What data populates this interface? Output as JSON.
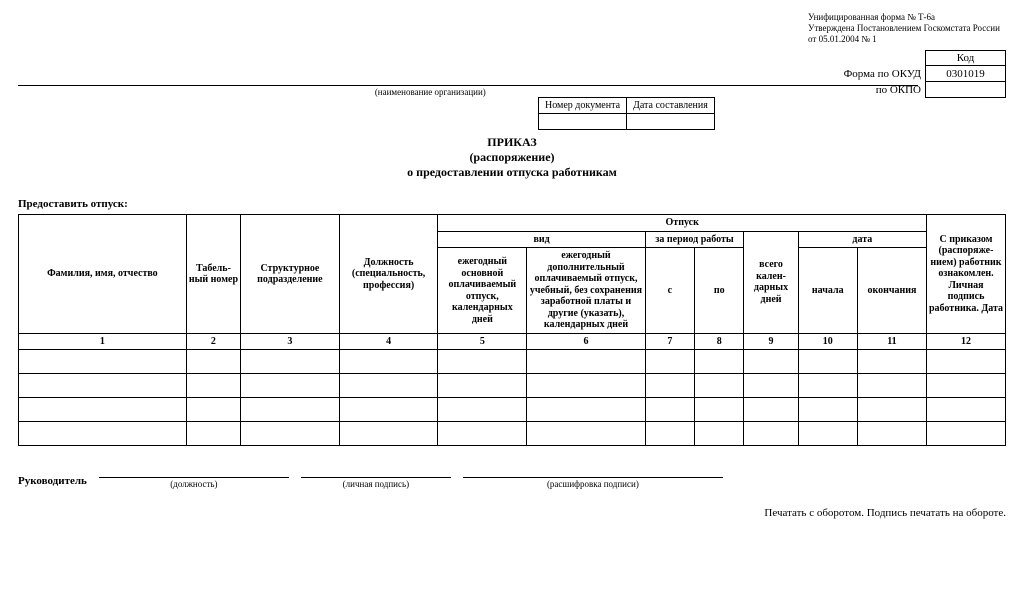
{
  "meta": {
    "line1": "Унифицированная форма № Т-6а",
    "line2": "Утверждена Постановлением Госкомстата России",
    "line3": "от 05.01.2004 № 1"
  },
  "okud": {
    "code_header": "Код",
    "okud_label": "Форма по ОКУД",
    "okud_value": "0301019",
    "okpo_label": "по ОКПО",
    "okpo_value": ""
  },
  "org_caption": "(наименование организации)",
  "doc_nums": {
    "num_label": "Номер документа",
    "date_label": "Дата составления",
    "num_value": "",
    "date_value": ""
  },
  "title": {
    "t1": "ПРИКАЗ",
    "t2": "(распоряжение)",
    "t3": "о предоставлении отпуска работникам"
  },
  "provide": "Предоставить отпуск:",
  "table": {
    "group_otpusk": "Отпуск",
    "group_vid": "вид",
    "group_period": "за период работы",
    "group_data": "дата",
    "cols": {
      "c1": "Фамилия, имя, отчество",
      "c2": "Табель-\nный номер",
      "c3": "Структурное подразделение",
      "c4": "Должность (специальность, профессия)",
      "c5": "ежегодный основной оплачиваемый отпуск, календарных дней",
      "c6": "ежегодный дополнительный оплачиваемый отпуск, учебный, без сохранения заработной платы и другие (указать), календарных дней",
      "c7": "с",
      "c8": "по",
      "c9": "всего кален-\nдарных дней",
      "c10": "начала",
      "c11": "окончания",
      "c12": "С приказом (распоряже-\nнием) работник ознакомлен. Личная подпись работника. Дата"
    },
    "nums": [
      "1",
      "2",
      "3",
      "4",
      "5",
      "6",
      "7",
      "8",
      "9",
      "10",
      "11",
      "12"
    ],
    "col_widths_pct": [
      17,
      5.5,
      10,
      10,
      9,
      12,
      5,
      5,
      5.5,
      6,
      7,
      8
    ],
    "row_count": 4
  },
  "sign": {
    "label": "Руководитель",
    "cap1": "(должность)",
    "cap2": "(личная подпись)",
    "cap3": "(расшифровка подписи)"
  },
  "footer": "Печатать с оборотом. Подпись печатать на обороте."
}
